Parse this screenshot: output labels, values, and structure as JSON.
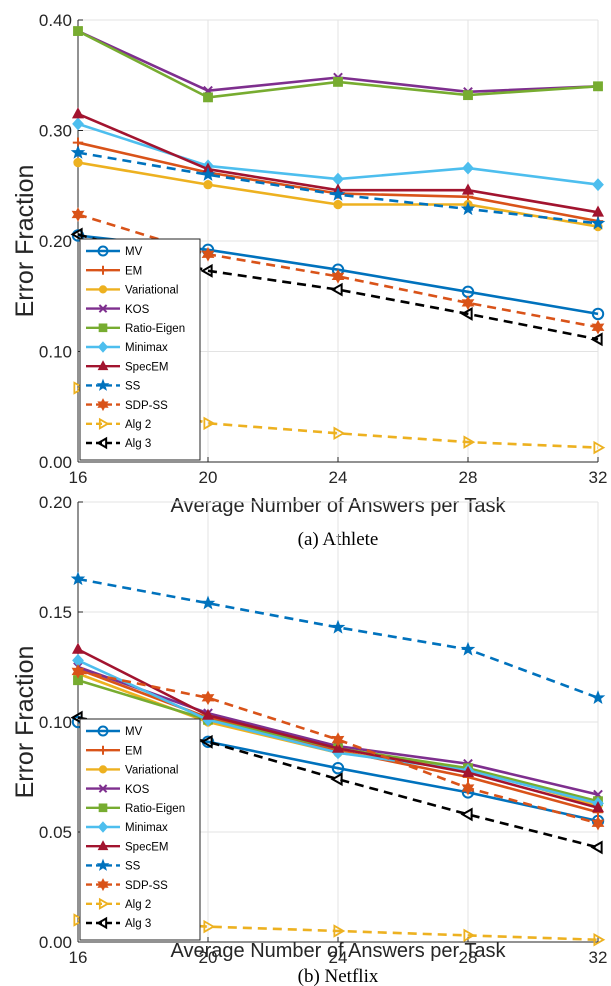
{
  "series_styles": [
    {
      "name": "MV",
      "color": "#0072BD",
      "marker": "circle",
      "dash": false
    },
    {
      "name": "EM",
      "color": "#D95319",
      "marker": "plus",
      "dash": false
    },
    {
      "name": "Variational",
      "color": "#EDB120",
      "marker": "circle-filled",
      "dash": false
    },
    {
      "name": "KOS",
      "color": "#7E2F8E",
      "marker": "x",
      "dash": false
    },
    {
      "name": "Ratio-Eigen",
      "color": "#77AC30",
      "marker": "square",
      "dash": false
    },
    {
      "name": "Minimax",
      "color": "#4DBEEE",
      "marker": "diamond",
      "dash": false
    },
    {
      "name": "SpecEM",
      "color": "#A2142F",
      "marker": "triangle-up",
      "dash": false
    },
    {
      "name": "SS",
      "color": "#0072BD",
      "marker": "star",
      "dash": true
    },
    {
      "name": "SDP-SS",
      "color": "#D95319",
      "marker": "hexagram",
      "dash": true
    },
    {
      "name": "Alg 2",
      "color": "#EDB120",
      "marker": "triangle-right",
      "dash": true
    },
    {
      "name": "Alg 3",
      "color": "#000000",
      "marker": "triangle-left",
      "dash": true
    }
  ],
  "chart_data": [
    {
      "type": "line",
      "caption": "(a)  Athlete",
      "xlabel": "Average Number of Answers per Task",
      "ylabel": "Error Fraction",
      "x": [
        16,
        20,
        24,
        28,
        32
      ],
      "xlim": [
        16,
        32
      ],
      "ylim": [
        0,
        0.4
      ],
      "xticks": [
        "16",
        "20",
        "24",
        "28",
        "32"
      ],
      "yticks": [
        "0.00",
        "0.10",
        "0.20",
        "0.30",
        "0.40"
      ],
      "grid": true,
      "legend_position": "bottom-left",
      "series": [
        {
          "name": "MV",
          "values": [
            0.205,
            0.192,
            0.174,
            0.154,
            0.134
          ]
        },
        {
          "name": "EM",
          "values": [
            0.289,
            0.262,
            0.243,
            0.24,
            0.218
          ]
        },
        {
          "name": "Variational",
          "values": [
            0.271,
            0.251,
            0.233,
            0.233,
            0.213
          ]
        },
        {
          "name": "KOS",
          "values": [
            0.39,
            0.336,
            0.348,
            0.335,
            0.34
          ]
        },
        {
          "name": "Ratio-Eigen",
          "values": [
            0.39,
            0.33,
            0.344,
            0.332,
            0.34
          ]
        },
        {
          "name": "Minimax",
          "values": [
            0.306,
            0.268,
            0.256,
            0.266,
            0.251
          ]
        },
        {
          "name": "SpecEM",
          "values": [
            0.315,
            0.265,
            0.246,
            0.246,
            0.226
          ]
        },
        {
          "name": "SS",
          "values": [
            0.28,
            0.26,
            0.242,
            0.229,
            0.216
          ]
        },
        {
          "name": "SDP-SS",
          "values": [
            0.224,
            0.188,
            0.168,
            0.144,
            0.122
          ]
        },
        {
          "name": "Alg 2",
          "values": [
            0.067,
            0.035,
            0.026,
            0.018,
            0.013
          ]
        },
        {
          "name": "Alg 3",
          "values": [
            0.206,
            0.173,
            0.156,
            0.134,
            0.111
          ]
        }
      ]
    },
    {
      "type": "line",
      "caption": "(b)  Netflix",
      "xlabel": "Average Number of Answers per Task",
      "ylabel": "Error Fraction",
      "x": [
        16,
        20,
        24,
        28,
        32
      ],
      "xlim": [
        16,
        32
      ],
      "ylim": [
        0,
        0.2
      ],
      "xticks": [
        "16",
        "20",
        "24",
        "28",
        "32"
      ],
      "yticks": [
        "0.00",
        "0.05",
        "0.10",
        "0.15",
        "0.20"
      ],
      "grid": true,
      "legend_position": "bottom-left",
      "series": [
        {
          "name": "MV",
          "values": [
            0.1,
            0.091,
            0.079,
            0.068,
            0.055
          ]
        },
        {
          "name": "EM",
          "values": [
            0.124,
            0.102,
            0.087,
            0.075,
            0.059
          ]
        },
        {
          "name": "Variational",
          "values": [
            0.122,
            0.1,
            0.086,
            0.079,
            0.062
          ]
        },
        {
          "name": "KOS",
          "values": [
            0.125,
            0.104,
            0.089,
            0.081,
            0.067
          ]
        },
        {
          "name": "Ratio-Eigen",
          "values": [
            0.119,
            0.101,
            0.088,
            0.079,
            0.064
          ]
        },
        {
          "name": "Minimax",
          "values": [
            0.128,
            0.101,
            0.086,
            0.078,
            0.063
          ]
        },
        {
          "name": "SpecEM",
          "values": [
            0.133,
            0.103,
            0.088,
            0.077,
            0.061
          ]
        },
        {
          "name": "SS",
          "values": [
            0.165,
            0.154,
            0.143,
            0.133,
            0.111
          ]
        },
        {
          "name": "SDP-SS",
          "values": [
            0.123,
            0.111,
            0.092,
            0.07,
            0.054
          ]
        },
        {
          "name": "Alg 2",
          "values": [
            0.01,
            0.007,
            0.005,
            0.003,
            0.001
          ]
        },
        {
          "name": "Alg 3",
          "values": [
            0.102,
            0.091,
            0.074,
            0.058,
            0.043
          ]
        }
      ]
    }
  ]
}
